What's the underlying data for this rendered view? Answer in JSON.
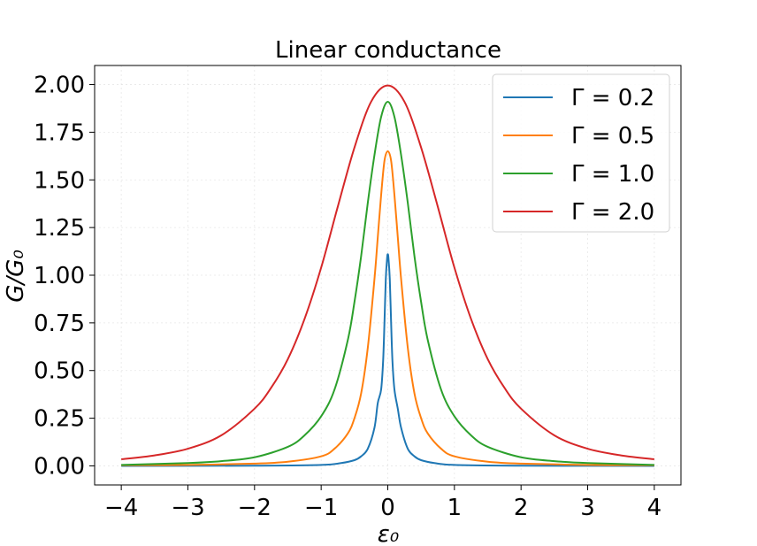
{
  "chart_data": {
    "type": "line",
    "title": "Linear conductance",
    "xlabel": "ε₀",
    "ylabel": "G/G₀",
    "xlim": [
      -4.4,
      4.4
    ],
    "ylim": [
      -0.1,
      2.1
    ],
    "x_ticks": [
      -4,
      -3,
      -2,
      -1,
      0,
      1,
      2,
      3,
      4
    ],
    "x_tick_labels": [
      "−4",
      "−3",
      "−2",
      "−1",
      "0",
      "1",
      "2",
      "3",
      "4"
    ],
    "y_ticks": [
      0,
      0.25,
      0.5,
      0.75,
      1.0,
      1.25,
      1.5,
      1.75,
      2.0
    ],
    "y_tick_labels": [
      "0.00",
      "0.25",
      "0.50",
      "0.75",
      "1.00",
      "1.25",
      "1.50",
      "1.75",
      "2.00"
    ],
    "grid": true,
    "legend_position": "top-right",
    "series": [
      {
        "name": "Γ = 0.2",
        "color": "#1f77b4",
        "x": [
          -4.0,
          -2.0,
          -1.0,
          -0.7,
          -0.5,
          -0.4,
          -0.3,
          -0.2,
          -0.15,
          -0.1,
          -0.07,
          -0.05,
          -0.03,
          -0.01,
          0.0,
          0.01,
          0.03,
          0.05,
          0.07,
          0.1,
          0.15,
          0.2,
          0.3,
          0.4,
          0.5,
          0.7,
          1.0,
          2.0,
          4.0
        ],
        "y": [
          0.0,
          0.001,
          0.005,
          0.015,
          0.03,
          0.05,
          0.09,
          0.2,
          0.33,
          0.4,
          0.55,
          0.75,
          0.98,
          1.09,
          1.11,
          1.09,
          0.98,
          0.75,
          0.55,
          0.4,
          0.3,
          0.2,
          0.09,
          0.05,
          0.03,
          0.015,
          0.005,
          0.001,
          0.0
        ]
      },
      {
        "name": "Γ = 0.5",
        "color": "#ff7f0e",
        "x": [
          -4.0,
          -3.0,
          -2.0,
          -1.5,
          -1.0,
          -0.8,
          -0.6,
          -0.5,
          -0.4,
          -0.3,
          -0.2,
          -0.15,
          -0.1,
          -0.05,
          0.0,
          0.05,
          0.1,
          0.15,
          0.2,
          0.3,
          0.4,
          0.5,
          0.6,
          0.8,
          1.0,
          1.5,
          2.0,
          3.0,
          4.0
        ],
        "y": [
          0.003,
          0.005,
          0.012,
          0.022,
          0.05,
          0.09,
          0.17,
          0.25,
          0.38,
          0.62,
          0.98,
          1.2,
          1.42,
          1.6,
          1.65,
          1.6,
          1.42,
          1.2,
          0.98,
          0.62,
          0.38,
          0.25,
          0.17,
          0.09,
          0.05,
          0.022,
          0.012,
          0.005,
          0.003
        ]
      },
      {
        "name": "Γ = 1.0",
        "color": "#2ca02c",
        "x": [
          -4.0,
          -3.0,
          -2.5,
          -2.0,
          -1.5,
          -1.25,
          -1.0,
          -0.8,
          -0.6,
          -0.5,
          -0.4,
          -0.3,
          -0.2,
          -0.1,
          0.0,
          0.1,
          0.2,
          0.3,
          0.4,
          0.5,
          0.6,
          0.8,
          1.0,
          1.25,
          1.5,
          2.0,
          2.5,
          3.0,
          4.0
        ],
        "y": [
          0.005,
          0.015,
          0.025,
          0.045,
          0.1,
          0.16,
          0.26,
          0.4,
          0.66,
          0.86,
          1.1,
          1.38,
          1.63,
          1.83,
          1.91,
          1.83,
          1.63,
          1.38,
          1.1,
          0.86,
          0.66,
          0.4,
          0.26,
          0.16,
          0.1,
          0.045,
          0.025,
          0.015,
          0.005
        ]
      },
      {
        "name": "Γ = 2.0",
        "color": "#d62728",
        "x": [
          -4.0,
          -3.5,
          -3.0,
          -2.5,
          -2.0,
          -1.75,
          -1.5,
          -1.25,
          -1.0,
          -0.75,
          -0.5,
          -0.25,
          0.0,
          0.25,
          0.5,
          0.75,
          1.0,
          1.25,
          1.5,
          1.75,
          2.0,
          2.5,
          3.0,
          3.5,
          4.0
        ],
        "y": [
          0.035,
          0.055,
          0.09,
          0.16,
          0.3,
          0.41,
          0.56,
          0.77,
          1.04,
          1.36,
          1.67,
          1.91,
          1.995,
          1.91,
          1.67,
          1.36,
          1.04,
          0.77,
          0.56,
          0.41,
          0.3,
          0.16,
          0.09,
          0.055,
          0.035
        ]
      }
    ]
  }
}
